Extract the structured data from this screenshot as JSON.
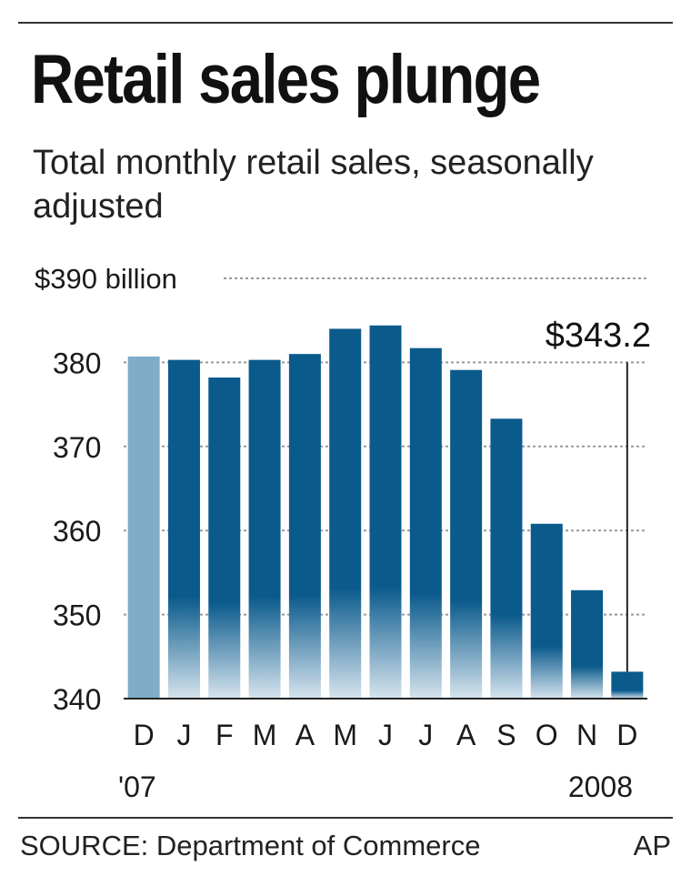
{
  "title": "Retail sales plunge",
  "subtitle": "Total monthly retail sales, seasonally adjusted",
  "source": "SOURCE: Department of Commerce",
  "credit": "AP",
  "colors": {
    "bar": "#0a5a8c",
    "bar_first": "#7fadc8",
    "grid": "#999999",
    "text": "#1a1a1a"
  },
  "chart_data": {
    "type": "bar",
    "y_top_label": "$390 billion",
    "yticks": [
      380,
      370,
      360,
      350,
      340
    ],
    "ylim": [
      340,
      390
    ],
    "categories": [
      "D",
      "J",
      "F",
      "M",
      "A",
      "M",
      "J",
      "J",
      "A",
      "S",
      "O",
      "N",
      "D"
    ],
    "year_labels": [
      "'07",
      "2008"
    ],
    "values": [
      380.7,
      380.3,
      378.2,
      380.3,
      381.0,
      384.0,
      384.4,
      381.7,
      379.1,
      373.3,
      360.8,
      352.9,
      343.2
    ],
    "highlight_label": "$343.2",
    "grid": true
  }
}
